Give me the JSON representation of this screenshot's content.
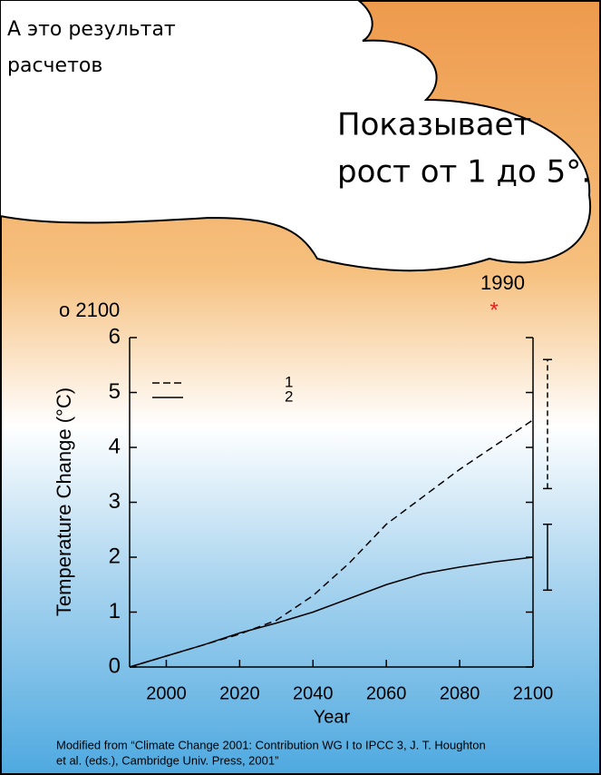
{
  "slide": {
    "caption": [
      "А это результат",
      "расчетов"
    ],
    "cloud": [
      "Показывает",
      "рост от 1 до 5°."
    ],
    "marker_year": "1990",
    "marker": "*",
    "left_label": "о 2100"
  },
  "chart_data": {
    "type": "line",
    "x": [
      1990,
      2000,
      2010,
      2020,
      2030,
      2040,
      2050,
      2060,
      2070,
      2080,
      2090,
      2100
    ],
    "series": [
      {
        "name": "1",
        "color": "#000000",
        "dash": true,
        "values": [
          0,
          0.2,
          0.4,
          0.6,
          0.85,
          1.3,
          1.9,
          2.6,
          3.1,
          3.6,
          4.05,
          4.5
        ],
        "range": [
          3.25,
          5.6
        ]
      },
      {
        "name": "2",
        "color": "#000000",
        "dash": false,
        "values": [
          0,
          0.2,
          0.4,
          0.62,
          0.8,
          1.0,
          1.25,
          1.5,
          1.7,
          1.82,
          1.92,
          2.0
        ],
        "range": [
          1.4,
          2.6
        ]
      }
    ],
    "xlim": [
      1990,
      2100
    ],
    "xticks": [
      2000,
      2020,
      2040,
      2060,
      2080,
      2100
    ],
    "ylim": [
      0,
      6
    ],
    "yticks": [
      0,
      1,
      2,
      3,
      4,
      5,
      6
    ],
    "xlabel": "Year",
    "ylabel": "Temperature Change (°C)",
    "source": [
      "Modified from “Climate Change 2001: Contribution WG I to IPCC 3, J. T. Houghton",
      "et al. (eds.), Cambridge Univ. Press, 2001”"
    ]
  }
}
